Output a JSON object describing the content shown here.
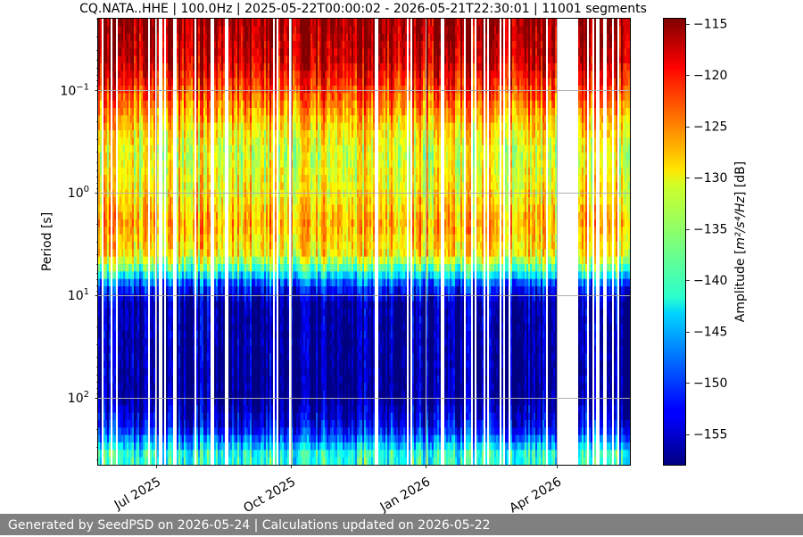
{
  "chart_data": {
    "type": "heatmap",
    "title": "CQ.NATA..HHE | 100.0Hz | 2025-05-22T00:00:02 - 2026-05-21T22:30:01 | 11001 segments",
    "xlabel": "",
    "ylabel": "Period [s]",
    "x_range": [
      "2025-05-22",
      "2026-05-21"
    ],
    "x_ticks": [
      {
        "date": "2025-07-01",
        "label": "Jul 2025"
      },
      {
        "date": "2025-10-01",
        "label": "Oct 2025"
      },
      {
        "date": "2026-01-01",
        "label": "Jan 2026"
      },
      {
        "date": "2026-04-01",
        "label": "Apr 2026"
      }
    ],
    "y_scale": "log",
    "y_inverted": true,
    "y_range": [
      0.02,
      450
    ],
    "y_ticks": [
      {
        "value": 0.1,
        "base": "10",
        "exp": "−1"
      },
      {
        "value": 1,
        "base": "10",
        "exp": "0"
      },
      {
        "value": 10,
        "base": "10",
        "exp": "1"
      },
      {
        "value": 100,
        "base": "10",
        "exp": "2"
      }
    ],
    "grid": true,
    "data_gaps": [
      [
        "2026-04-01",
        "2026-04-15"
      ]
    ],
    "colorbar": {
      "label_text": "Amplitude [",
      "label_math": "m²/s⁴/Hz",
      "label_tail": "] [dB]",
      "colormap": "jet",
      "range": [
        -158,
        -114.5
      ],
      "ticks": [
        "−115",
        "−120",
        "−125",
        "−130",
        "−135",
        "−140",
        "−145",
        "−150",
        "−155"
      ],
      "tick_values": [
        -115,
        -120,
        -125,
        -130,
        -135,
        -140,
        -145,
        -150,
        -155
      ]
    },
    "profile_db_by_period": [
      {
        "period": 0.02,
        "db": -115
      },
      {
        "period": 0.05,
        "db": -117
      },
      {
        "period": 0.1,
        "db": -122
      },
      {
        "period": 0.2,
        "db": -128
      },
      {
        "period": 0.4,
        "db": -132
      },
      {
        "period": 1,
        "db": -130
      },
      {
        "period": 2,
        "db": -127
      },
      {
        "period": 4,
        "db": -130
      },
      {
        "period": 6,
        "db": -140
      },
      {
        "period": 8,
        "db": -150
      },
      {
        "period": 12,
        "db": -156
      },
      {
        "period": 100,
        "db": -157
      },
      {
        "period": 200,
        "db": -152
      },
      {
        "period": 350,
        "db": -140
      }
    ]
  },
  "footer": {
    "text": "Generated by SeedPSD on 2026-05-24 | Calculations updated on 2026-05-22"
  }
}
